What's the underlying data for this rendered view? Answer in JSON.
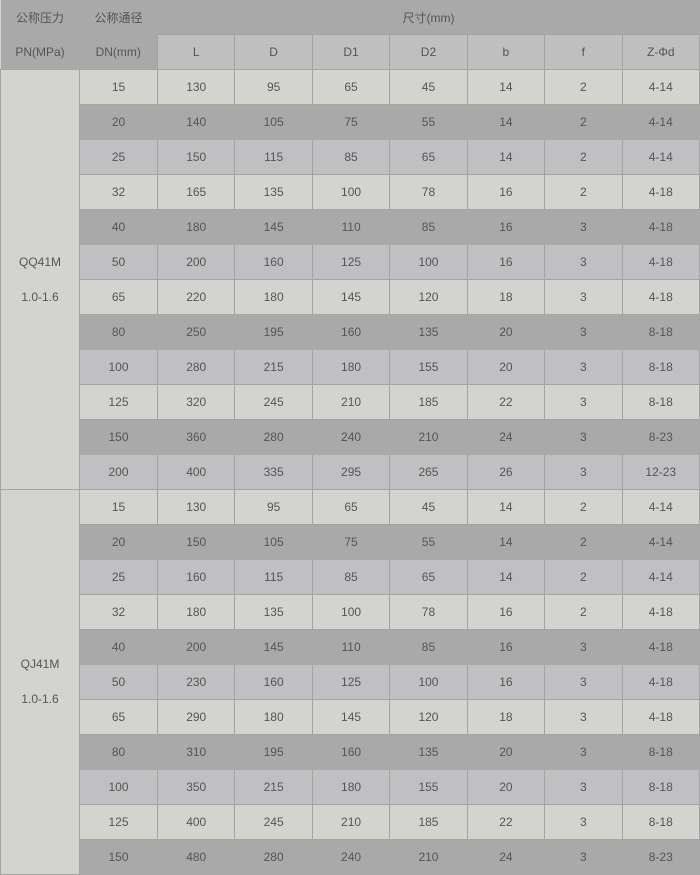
{
  "header": {
    "pn_cn": "公称压力",
    "pn": "PN(MPa)",
    "dn_cn": "公称通径",
    "dn": "DN(mm)",
    "size": "尺寸(mm)",
    "columns": [
      "L",
      "D",
      "D1",
      "D2",
      "b",
      "f",
      "Z-Φd"
    ]
  },
  "groups": [
    {
      "model": "QQ41M",
      "pressure": "1.0-1.6",
      "rows": [
        [
          "15",
          "130",
          "95",
          "65",
          "45",
          "14",
          "2",
          "4-14"
        ],
        [
          "20",
          "140",
          "105",
          "75",
          "55",
          "14",
          "2",
          "4-14"
        ],
        [
          "25",
          "150",
          "115",
          "85",
          "65",
          "14",
          "2",
          "4-14"
        ],
        [
          "32",
          "165",
          "135",
          "100",
          "78",
          "16",
          "2",
          "4-18"
        ],
        [
          "40",
          "180",
          "145",
          "110",
          "85",
          "16",
          "3",
          "4-18"
        ],
        [
          "50",
          "200",
          "160",
          "125",
          "100",
          "16",
          "3",
          "4-18"
        ],
        [
          "65",
          "220",
          "180",
          "145",
          "120",
          "18",
          "3",
          "4-18"
        ],
        [
          "80",
          "250",
          "195",
          "160",
          "135",
          "20",
          "3",
          "8-18"
        ],
        [
          "100",
          "280",
          "215",
          "180",
          "155",
          "20",
          "3",
          "8-18"
        ],
        [
          "125",
          "320",
          "245",
          "210",
          "185",
          "22",
          "3",
          "8-18"
        ],
        [
          "150",
          "360",
          "280",
          "240",
          "210",
          "24",
          "3",
          "8-23"
        ],
        [
          "200",
          "400",
          "335",
          "295",
          "265",
          "26",
          "3",
          "12-23"
        ]
      ]
    },
    {
      "model": "QJ41M",
      "pressure": "1.0-1.6",
      "rows": [
        [
          "15",
          "130",
          "95",
          "65",
          "45",
          "14",
          "2",
          "4-14"
        ],
        [
          "20",
          "150",
          "105",
          "75",
          "55",
          "14",
          "2",
          "4-14"
        ],
        [
          "25",
          "160",
          "115",
          "85",
          "65",
          "14",
          "2",
          "4-14"
        ],
        [
          "32",
          "180",
          "135",
          "100",
          "78",
          "16",
          "2",
          "4-18"
        ],
        [
          "40",
          "200",
          "145",
          "110",
          "85",
          "16",
          "3",
          "4-18"
        ],
        [
          "50",
          "230",
          "160",
          "125",
          "100",
          "16",
          "3",
          "4-18"
        ],
        [
          "65",
          "290",
          "180",
          "145",
          "120",
          "18",
          "3",
          "4-18"
        ],
        [
          "80",
          "310",
          "195",
          "160",
          "135",
          "20",
          "3",
          "8-18"
        ],
        [
          "100",
          "350",
          "215",
          "180",
          "155",
          "20",
          "3",
          "8-18"
        ],
        [
          "125",
          "400",
          "245",
          "210",
          "185",
          "22",
          "3",
          "8-18"
        ],
        [
          "150",
          "480",
          "280",
          "240",
          "210",
          "24",
          "3",
          "8-23"
        ]
      ]
    }
  ]
}
